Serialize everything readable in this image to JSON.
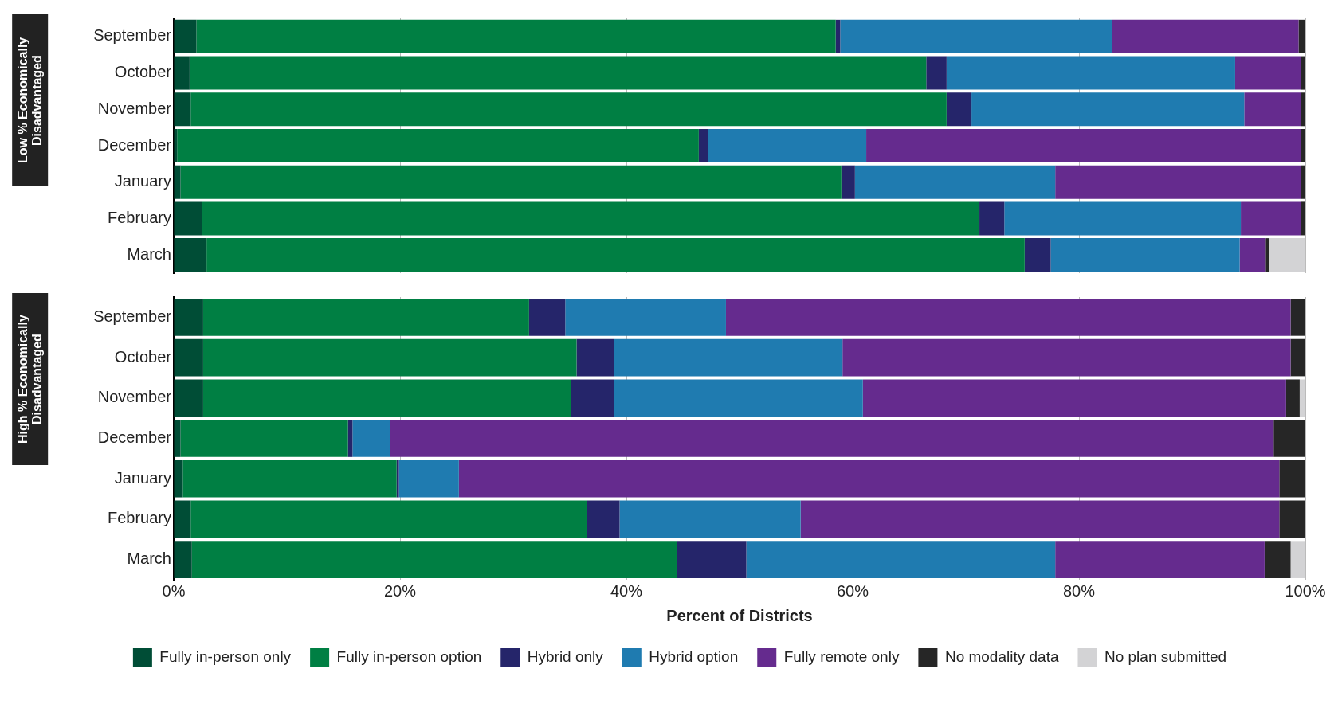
{
  "chart_data": [
    {
      "type": "bar",
      "orientation": "horizontal",
      "stacked": true,
      "ylabel": "Low % Economically Disadvantaged",
      "categories": [
        "September",
        "October",
        "November",
        "December",
        "January",
        "February",
        "March"
      ],
      "xlim": [
        0,
        100
      ],
      "xticks": [
        {
          "value": 0,
          "label": null
        },
        {
          "value": 20,
          "label": null
        },
        {
          "value": 40,
          "label": null
        },
        {
          "value": 60,
          "label": null
        },
        {
          "value": 80,
          "label": null
        },
        {
          "value": 100,
          "label": null
        }
      ],
      "grid": "x",
      "tick_labels": "y",
      "legend": false,
      "series": [
        {
          "color": "#004d36",
          "values": [
            2.0,
            1.4,
            1.5,
            0.3,
            0.6,
            2.5,
            2.9
          ]
        },
        {
          "color": "#007f43",
          "values": [
            56.5,
            65.1,
            66.8,
            46.1,
            58.4,
            68.7,
            72.3
          ]
        },
        {
          "color": "#25256a",
          "values": [
            0.4,
            1.8,
            2.2,
            0.8,
            1.2,
            2.2,
            2.3
          ]
        },
        {
          "color": "#1f7bb0",
          "values": [
            24.0,
            25.5,
            24.1,
            14.0,
            17.7,
            20.9,
            16.7
          ]
        },
        {
          "color": "#652b8e",
          "values": [
            16.5,
            5.8,
            5.0,
            38.4,
            21.7,
            5.3,
            2.3
          ]
        },
        {
          "color": "#262626",
          "values": [
            0.6,
            0.4,
            0.4,
            0.4,
            0.4,
            0.4,
            0.3
          ]
        },
        {
          "color": "#d3d3d5",
          "values": [
            0,
            0,
            0,
            0,
            0,
            0,
            3.2
          ]
        }
      ]
    },
    {
      "type": "bar",
      "orientation": "horizontal",
      "stacked": true,
      "ylabel": "High % Economically Disadvantaged",
      "xlabel": "Percent of Districts",
      "categories": [
        "September",
        "October",
        "November",
        "December",
        "January",
        "February",
        "March"
      ],
      "xlim": [
        0,
        100
      ],
      "xticks": [
        {
          "value": 0,
          "label": "0%"
        },
        {
          "value": 20,
          "label": "20%"
        },
        {
          "value": 40,
          "label": "40%"
        },
        {
          "value": 60,
          "label": "60%"
        },
        {
          "value": 80,
          "label": "80%"
        },
        {
          "value": 100,
          "label": "100%"
        }
      ],
      "grid": "x",
      "legend": "bottom",
      "series": [
        {
          "name": "Fully in-person only",
          "color": "#004d36",
          "values": [
            2.6,
            2.6,
            2.6,
            0.6,
            0.8,
            1.5,
            1.6
          ]
        },
        {
          "name": "Fully in-person option",
          "color": "#007f43",
          "values": [
            28.8,
            33.0,
            32.5,
            14.8,
            18.9,
            35.0,
            42.9
          ]
        },
        {
          "name": "Hybrid only",
          "color": "#25256a",
          "values": [
            3.2,
            3.3,
            3.8,
            0.4,
            0.2,
            2.9,
            6.1
          ]
        },
        {
          "name": "Hybrid option",
          "color": "#1f7bb0",
          "values": [
            14.2,
            20.2,
            22.0,
            3.3,
            5.3,
            16.0,
            27.3
          ]
        },
        {
          "name": "Fully remote only",
          "color": "#652b8e",
          "values": [
            49.9,
            39.6,
            37.4,
            78.1,
            72.5,
            42.3,
            18.5
          ]
        },
        {
          "name": "No modality data",
          "color": "#262626",
          "values": [
            1.3,
            1.3,
            1.2,
            2.8,
            2.3,
            2.3,
            2.3
          ]
        },
        {
          "name": "No plan submitted",
          "color": "#d3d3d5",
          "values": [
            0,
            0,
            0.5,
            0,
            0,
            0,
            1.3
          ]
        }
      ]
    }
  ]
}
